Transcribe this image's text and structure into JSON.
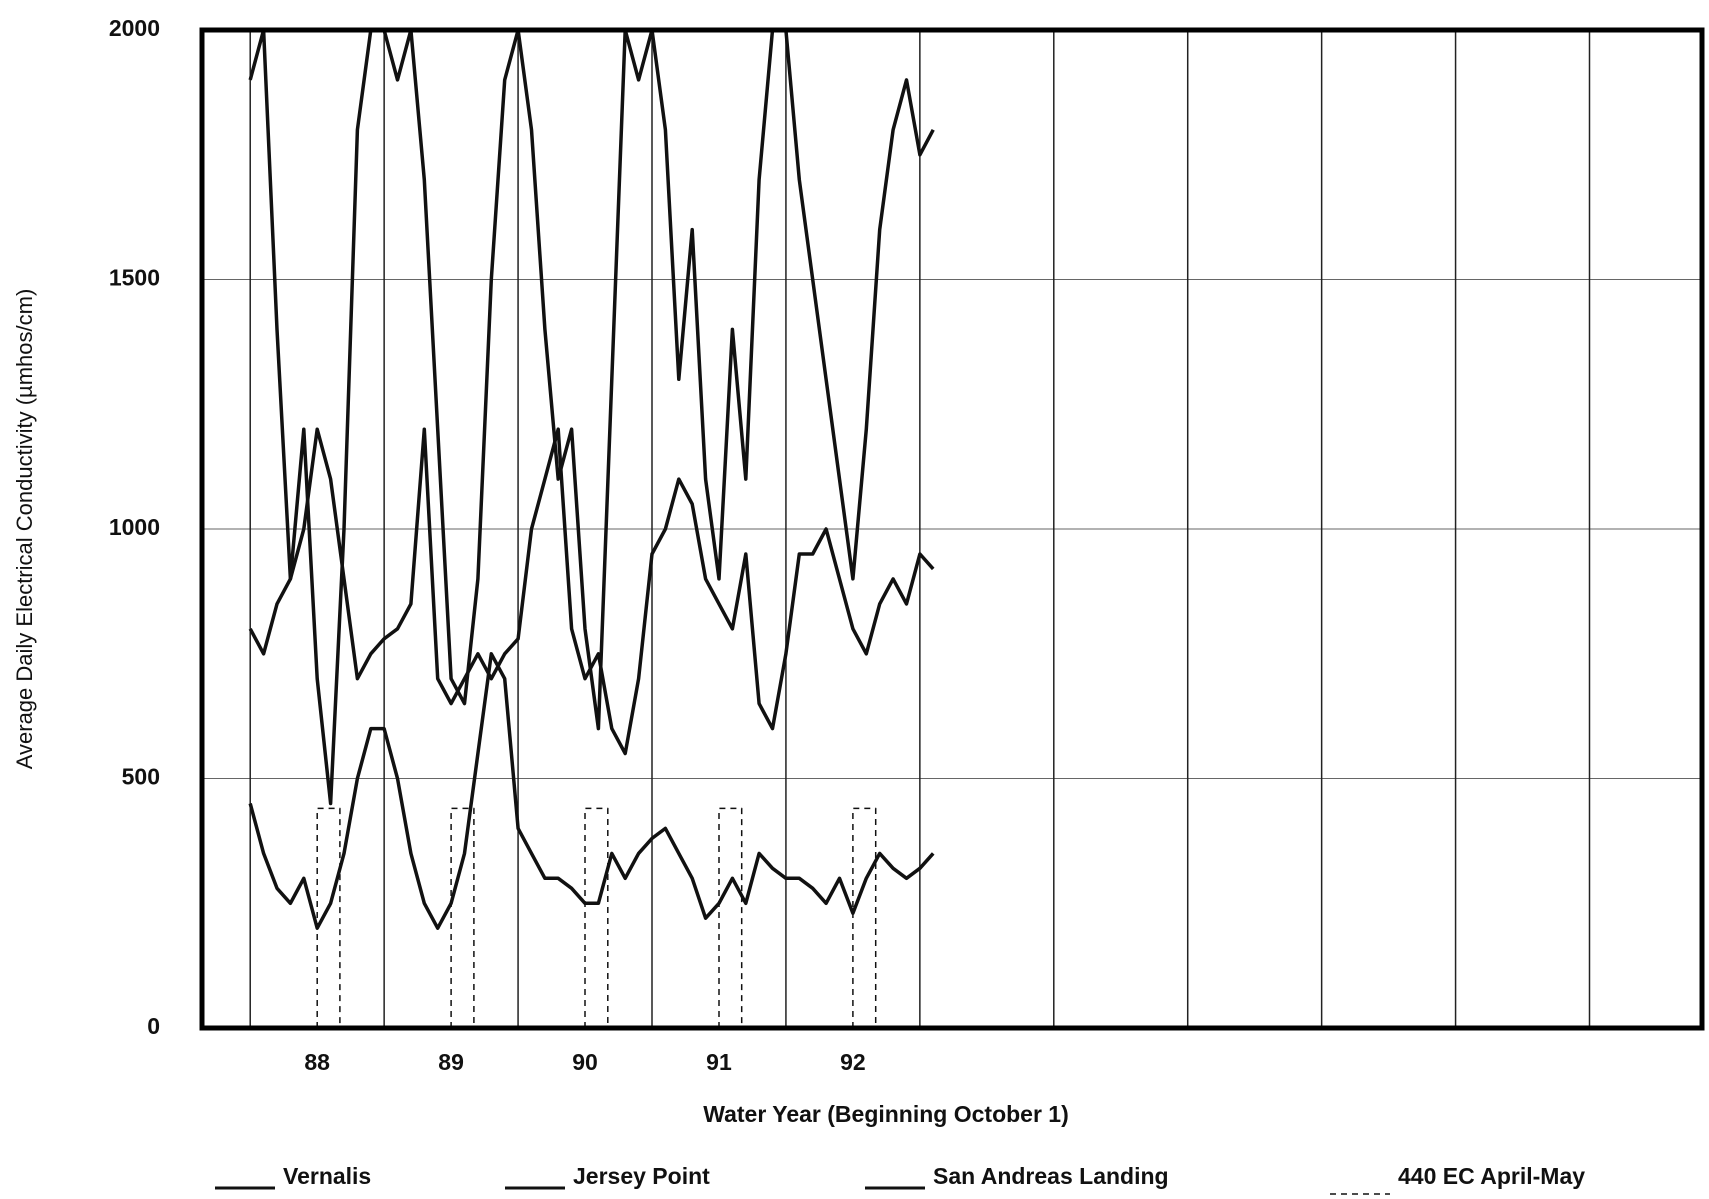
{
  "chart_data": {
    "type": "line",
    "ylabel": "Average Daily Electrical Conductivity (µmhos/cm)",
    "xlabel": "Water Year (Beginning October 1)",
    "xlim": [
      87.14,
      98.34
    ],
    "xticks": [
      88,
      89,
      90,
      91,
      92
    ],
    "xgrid": [
      87.5,
      88.5,
      89.5,
      90.5,
      91.5,
      92.5,
      93.5,
      94.5,
      95.5,
      96.5,
      97.5
    ],
    "ylim": [
      0,
      2000
    ],
    "yticks": [
      0,
      500,
      1000,
      1500,
      2000
    ],
    "grid": true,
    "legend": "bottom",
    "x": [
      87.5,
      87.6,
      87.7,
      87.8,
      87.9,
      88.0,
      88.1,
      88.2,
      88.3,
      88.4,
      88.5,
      88.6,
      88.7,
      88.8,
      88.9,
      89.0,
      89.1,
      89.2,
      89.3,
      89.4,
      89.5,
      89.6,
      89.7,
      89.8,
      89.9,
      90.0,
      90.1,
      90.2,
      90.3,
      90.4,
      90.5,
      90.6,
      90.7,
      90.8,
      90.9,
      91.0,
      91.1,
      91.2,
      91.3,
      91.4,
      91.5,
      91.6,
      91.7,
      91.8,
      91.9,
      92.0,
      92.1,
      92.2,
      92.3,
      92.4,
      92.5,
      92.6
    ],
    "series": [
      {
        "name": "Vernalis",
        "color": "#111111",
        "values": [
          800,
          750,
          850,
          900,
          1000,
          1200,
          1100,
          900,
          700,
          750,
          780,
          800,
          850,
          1200,
          700,
          650,
          700,
          750,
          700,
          750,
          780,
          1000,
          1100,
          1200,
          800,
          700,
          750,
          600,
          550,
          700,
          950,
          1000,
          1100,
          1050,
          900,
          850,
          800,
          950,
          650,
          600,
          750,
          950,
          950,
          1000,
          900,
          800,
          750,
          850,
          900,
          850,
          950,
          920
        ]
      },
      {
        "name": "Jersey Point",
        "color": "#111111",
        "values": [
          1900,
          2000,
          1400,
          900,
          1200,
          700,
          450,
          1000,
          1800,
          2000,
          2000,
          1900,
          2000,
          1700,
          1200,
          700,
          650,
          900,
          1500,
          1900,
          2000,
          1800,
          1400,
          1100,
          1200,
          800,
          600,
          1300,
          2000,
          1900,
          2000,
          1800,
          1300,
          1600,
          1100,
          900,
          1400,
          1100,
          1700,
          2000,
          2000,
          1700,
          1500,
          1300,
          1100,
          900,
          1200,
          1600,
          1800,
          1900,
          1750,
          1800
        ]
      },
      {
        "name": "San Andreas Landing",
        "color": "#111111",
        "values": [
          450,
          350,
          280,
          250,
          300,
          200,
          250,
          350,
          500,
          600,
          600,
          500,
          350,
          250,
          200,
          250,
          350,
          550,
          750,
          700,
          400,
          350,
          300,
          300,
          280,
          250,
          250,
          350,
          300,
          350,
          380,
          400,
          350,
          300,
          220,
          250,
          300,
          250,
          350,
          320,
          300,
          300,
          280,
          250,
          300,
          230,
          300,
          350,
          320,
          300,
          320,
          350
        ]
      },
      {
        "name": "440 EC April-May",
        "color": "#111111",
        "dash": true,
        "x": [
          88.0,
          88.0,
          88.17,
          88.17,
          null,
          89.0,
          89.0,
          89.17,
          89.17,
          null,
          90.0,
          90.0,
          90.17,
          90.17,
          null,
          91.0,
          91.0,
          91.17,
          91.17,
          null,
          92.0,
          92.0,
          92.17,
          92.17
        ],
        "values": [
          0,
          440,
          440,
          0,
          null,
          0,
          440,
          440,
          0,
          null,
          0,
          440,
          440,
          0,
          null,
          0,
          440,
          440,
          0,
          null,
          0,
          440,
          440,
          0
        ]
      }
    ]
  }
}
